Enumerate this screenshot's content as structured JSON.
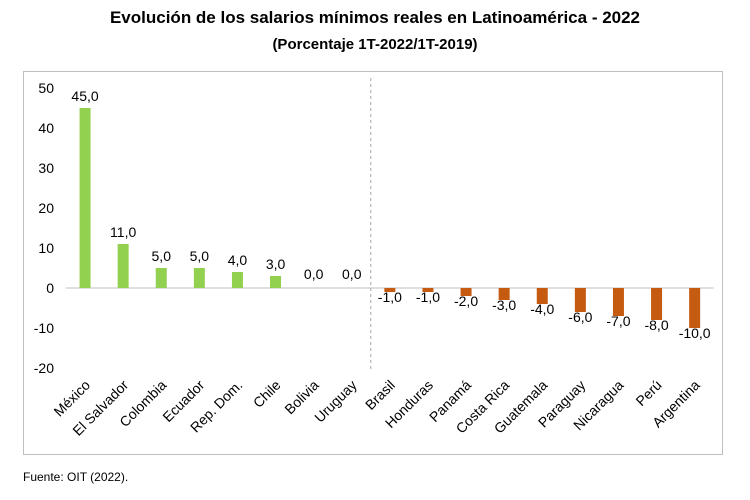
{
  "title": "Evolución de los salarios mínimos reales en Latinoamérica - 2022",
  "subtitle": "(Porcentaje 1T-2022/1T-2019)",
  "source": "Fuente: OIT (2022).",
  "colors": {
    "positive": "#92d050",
    "negative": "#c55a11",
    "divider": "#a6a6a6"
  },
  "chart_data": {
    "type": "bar",
    "title": "Evolución de los salarios mínimos reales en Latinoamérica - 2022",
    "subtitle": "(Porcentaje 1T-2022/1T-2019)",
    "xlabel": "",
    "ylabel": "",
    "ylim": [
      -20,
      50
    ],
    "yticks": [
      50,
      40,
      30,
      20,
      10,
      0,
      -10,
      -20
    ],
    "grid": false,
    "categories": [
      "México",
      "El Salvador",
      "Colombia",
      "Ecuador",
      "Rep. Dom.",
      "Chile",
      "Bolivia",
      "Uruguay",
      "Brasil",
      "Honduras",
      "Panamá",
      "Costa Rica",
      "Guatemala",
      "Paraguay",
      "Nicaragua",
      "Perú",
      "Argentina"
    ],
    "values": [
      45.0,
      11.0,
      5.0,
      5.0,
      4.0,
      3.0,
      0.0,
      0.0,
      -1.0,
      -1.0,
      -2.0,
      -3.0,
      -4.0,
      -6.0,
      -7.0,
      -8.0,
      -10.0
    ],
    "value_labels": [
      "45,0",
      "11,0",
      "5,0",
      "5,0",
      "4,0",
      "3,0",
      "0,0",
      "0,0",
      "-1,0",
      "-1,0",
      "-2,0",
      "-3,0",
      "-4,0",
      "-6,0",
      "-7,0",
      "-8,0",
      "-10,0"
    ]
  }
}
